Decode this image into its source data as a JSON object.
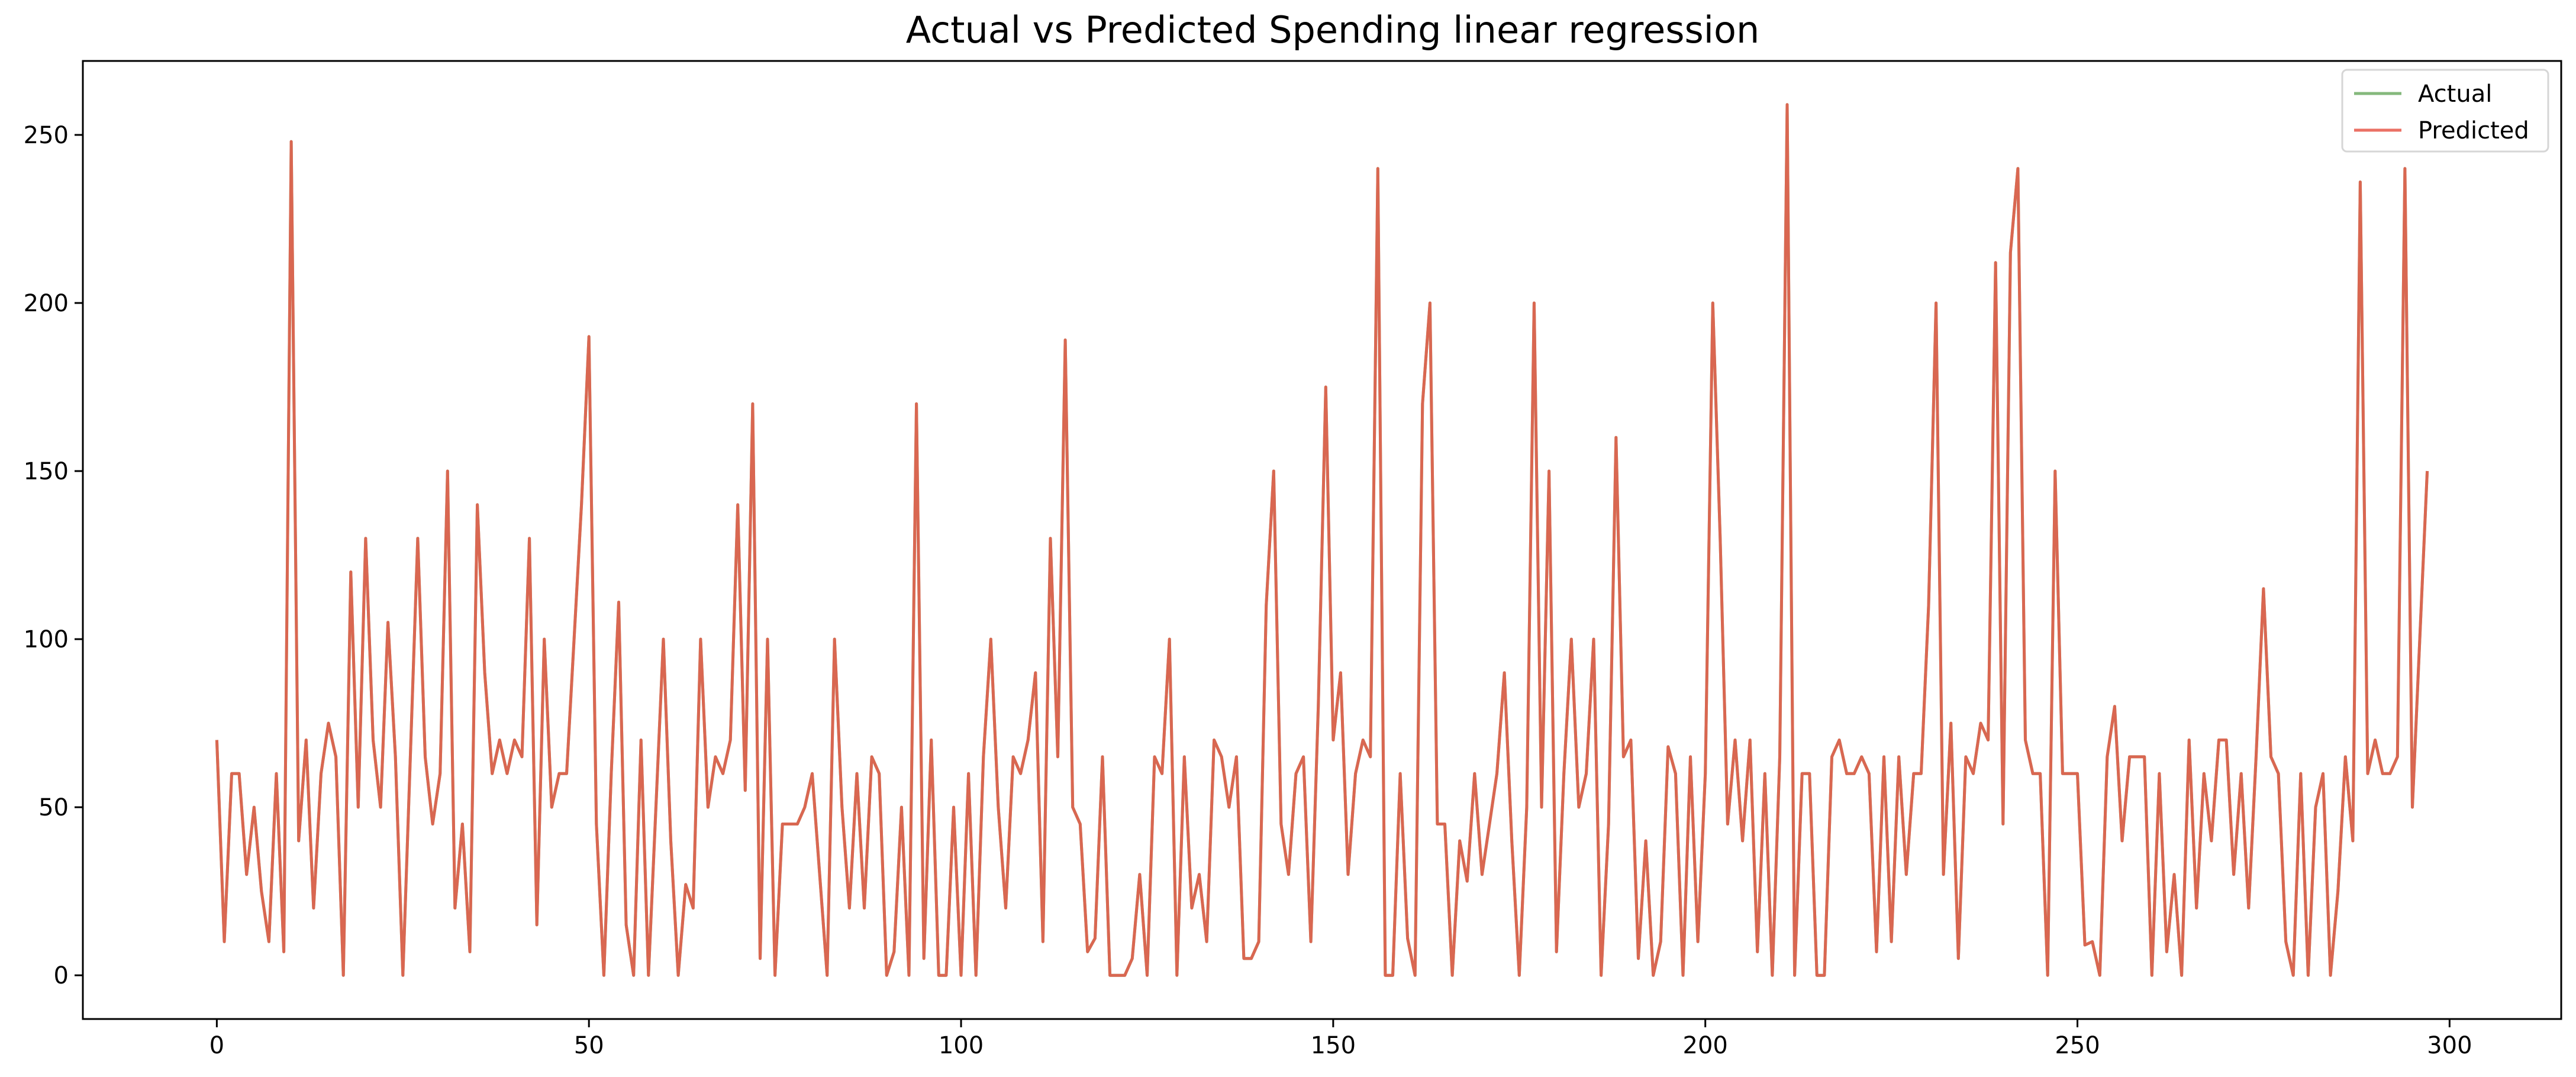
{
  "chart_data": {
    "type": "line",
    "title": "Actual vs Predicted Spending linear regression",
    "xlabel": "",
    "ylabel": "",
    "xlim": [
      -18,
      315
    ],
    "ylim": [
      -13,
      272
    ],
    "x_ticks": [
      0,
      50,
      100,
      150,
      200,
      250,
      300
    ],
    "y_ticks": [
      0,
      50,
      100,
      150,
      200,
      250
    ],
    "grid": false,
    "legend_position": "top-right",
    "series": [
      {
        "name": "Actual",
        "color": "#70ad65",
        "values": [
          70,
          10,
          60,
          60,
          30,
          50,
          25,
          10,
          60,
          7,
          248,
          40,
          70,
          20,
          60,
          75,
          65,
          0,
          120,
          50,
          130,
          70,
          50,
          105,
          65,
          0,
          65,
          130,
          65,
          45,
          60,
          150,
          20,
          45,
          7,
          140,
          90,
          60,
          70,
          60,
          70,
          65,
          130,
          15,
          100,
          50,
          60,
          60,
          100,
          140,
          190,
          45,
          0,
          60,
          111,
          15,
          0,
          70,
          0,
          50,
          100,
          40,
          0,
          27,
          20,
          100,
          50,
          65,
          60,
          70,
          140,
          55,
          170,
          5,
          100,
          0,
          45,
          45,
          45,
          50,
          60,
          30,
          0,
          100,
          50,
          20,
          60,
          20,
          65,
          60,
          0,
          7,
          50,
          0,
          170,
          5,
          70,
          0,
          0,
          50,
          0,
          60,
          0,
          65,
          100,
          50,
          20,
          65,
          60,
          70,
          90,
          10,
          130,
          65,
          189,
          50,
          45,
          7,
          11,
          65,
          0,
          0,
          0,
          5,
          30,
          0,
          65,
          60,
          100,
          0,
          65,
          20,
          30,
          10,
          70,
          65,
          50,
          65,
          5,
          5,
          10,
          110,
          150,
          45,
          30,
          60,
          65,
          10,
          80,
          175,
          70,
          90,
          30,
          60,
          70,
          65,
          240,
          0,
          0,
          60,
          11,
          0,
          170,
          200,
          45,
          45,
          0,
          40,
          28,
          60,
          30,
          45,
          60,
          90,
          40,
          0,
          50,
          200,
          50,
          150,
          7,
          60,
          100,
          50,
          60,
          100,
          0,
          45,
          160,
          65,
          70,
          5,
          40,
          0,
          10,
          68,
          60,
          0,
          65,
          10,
          60,
          200,
          130,
          45,
          70,
          40,
          70,
          7,
          60,
          0,
          65,
          259,
          0,
          60,
          60,
          0,
          0,
          65,
          70,
          60,
          60,
          65,
          60,
          7,
          65,
          10,
          65,
          30,
          60,
          60,
          110,
          200,
          30,
          75,
          5,
          65,
          60,
          75,
          70,
          212,
          45,
          215,
          240,
          70,
          60,
          60,
          0,
          150,
          60,
          60,
          60,
          9,
          10,
          0,
          65,
          80,
          40,
          65,
          65,
          65,
          0,
          60,
          7,
          30,
          0,
          70,
          20,
          60,
          40,
          70,
          70,
          30,
          60,
          20,
          65,
          115,
          65,
          60,
          10,
          0,
          60,
          0,
          50,
          60,
          0,
          25,
          65,
          40,
          236,
          60,
          70,
          60,
          60,
          65,
          240,
          50,
          100,
          150
        ]
      },
      {
        "name": "Predicted",
        "color": "#e8584a",
        "values": [
          70,
          10,
          60,
          60,
          30,
          50,
          25,
          10,
          60,
          7,
          248,
          40,
          70,
          20,
          60,
          75,
          65,
          0,
          120,
          50,
          130,
          70,
          50,
          105,
          65,
          0,
          65,
          130,
          65,
          45,
          60,
          150,
          20,
          45,
          7,
          140,
          90,
          60,
          70,
          60,
          70,
          65,
          130,
          15,
          100,
          50,
          60,
          60,
          100,
          140,
          190,
          45,
          0,
          60,
          111,
          15,
          0,
          70,
          0,
          50,
          100,
          40,
          0,
          27,
          20,
          100,
          50,
          65,
          60,
          70,
          140,
          55,
          170,
          5,
          100,
          0,
          45,
          45,
          45,
          50,
          60,
          30,
          0,
          100,
          50,
          20,
          60,
          20,
          65,
          60,
          0,
          7,
          50,
          0,
          170,
          5,
          70,
          0,
          0,
          50,
          0,
          60,
          0,
          65,
          100,
          50,
          20,
          65,
          60,
          70,
          90,
          10,
          130,
          65,
          189,
          50,
          45,
          7,
          11,
          65,
          0,
          0,
          0,
          5,
          30,
          0,
          65,
          60,
          100,
          0,
          65,
          20,
          30,
          10,
          70,
          65,
          50,
          65,
          5,
          5,
          10,
          110,
          150,
          45,
          30,
          60,
          65,
          10,
          80,
          175,
          70,
          90,
          30,
          60,
          70,
          65,
          240,
          0,
          0,
          60,
          11,
          0,
          170,
          200,
          45,
          45,
          0,
          40,
          28,
          60,
          30,
          45,
          60,
          90,
          40,
          0,
          50,
          200,
          50,
          150,
          7,
          60,
          100,
          50,
          60,
          100,
          0,
          45,
          160,
          65,
          70,
          5,
          40,
          0,
          10,
          68,
          60,
          0,
          65,
          10,
          60,
          200,
          130,
          45,
          70,
          40,
          70,
          7,
          60,
          0,
          65,
          259,
          0,
          60,
          60,
          0,
          0,
          65,
          70,
          60,
          60,
          65,
          60,
          7,
          65,
          10,
          65,
          30,
          60,
          60,
          110,
          200,
          30,
          75,
          5,
          65,
          60,
          75,
          70,
          212,
          45,
          215,
          240,
          70,
          60,
          60,
          0,
          150,
          60,
          60,
          60,
          9,
          10,
          0,
          65,
          80,
          40,
          65,
          65,
          65,
          0,
          60,
          7,
          30,
          0,
          70,
          20,
          60,
          40,
          70,
          70,
          30,
          60,
          20,
          65,
          115,
          65,
          60,
          10,
          0,
          60,
          0,
          50,
          60,
          0,
          25,
          65,
          40,
          236,
          60,
          70,
          60,
          60,
          65,
          240,
          50,
          100,
          150
        ]
      }
    ]
  }
}
